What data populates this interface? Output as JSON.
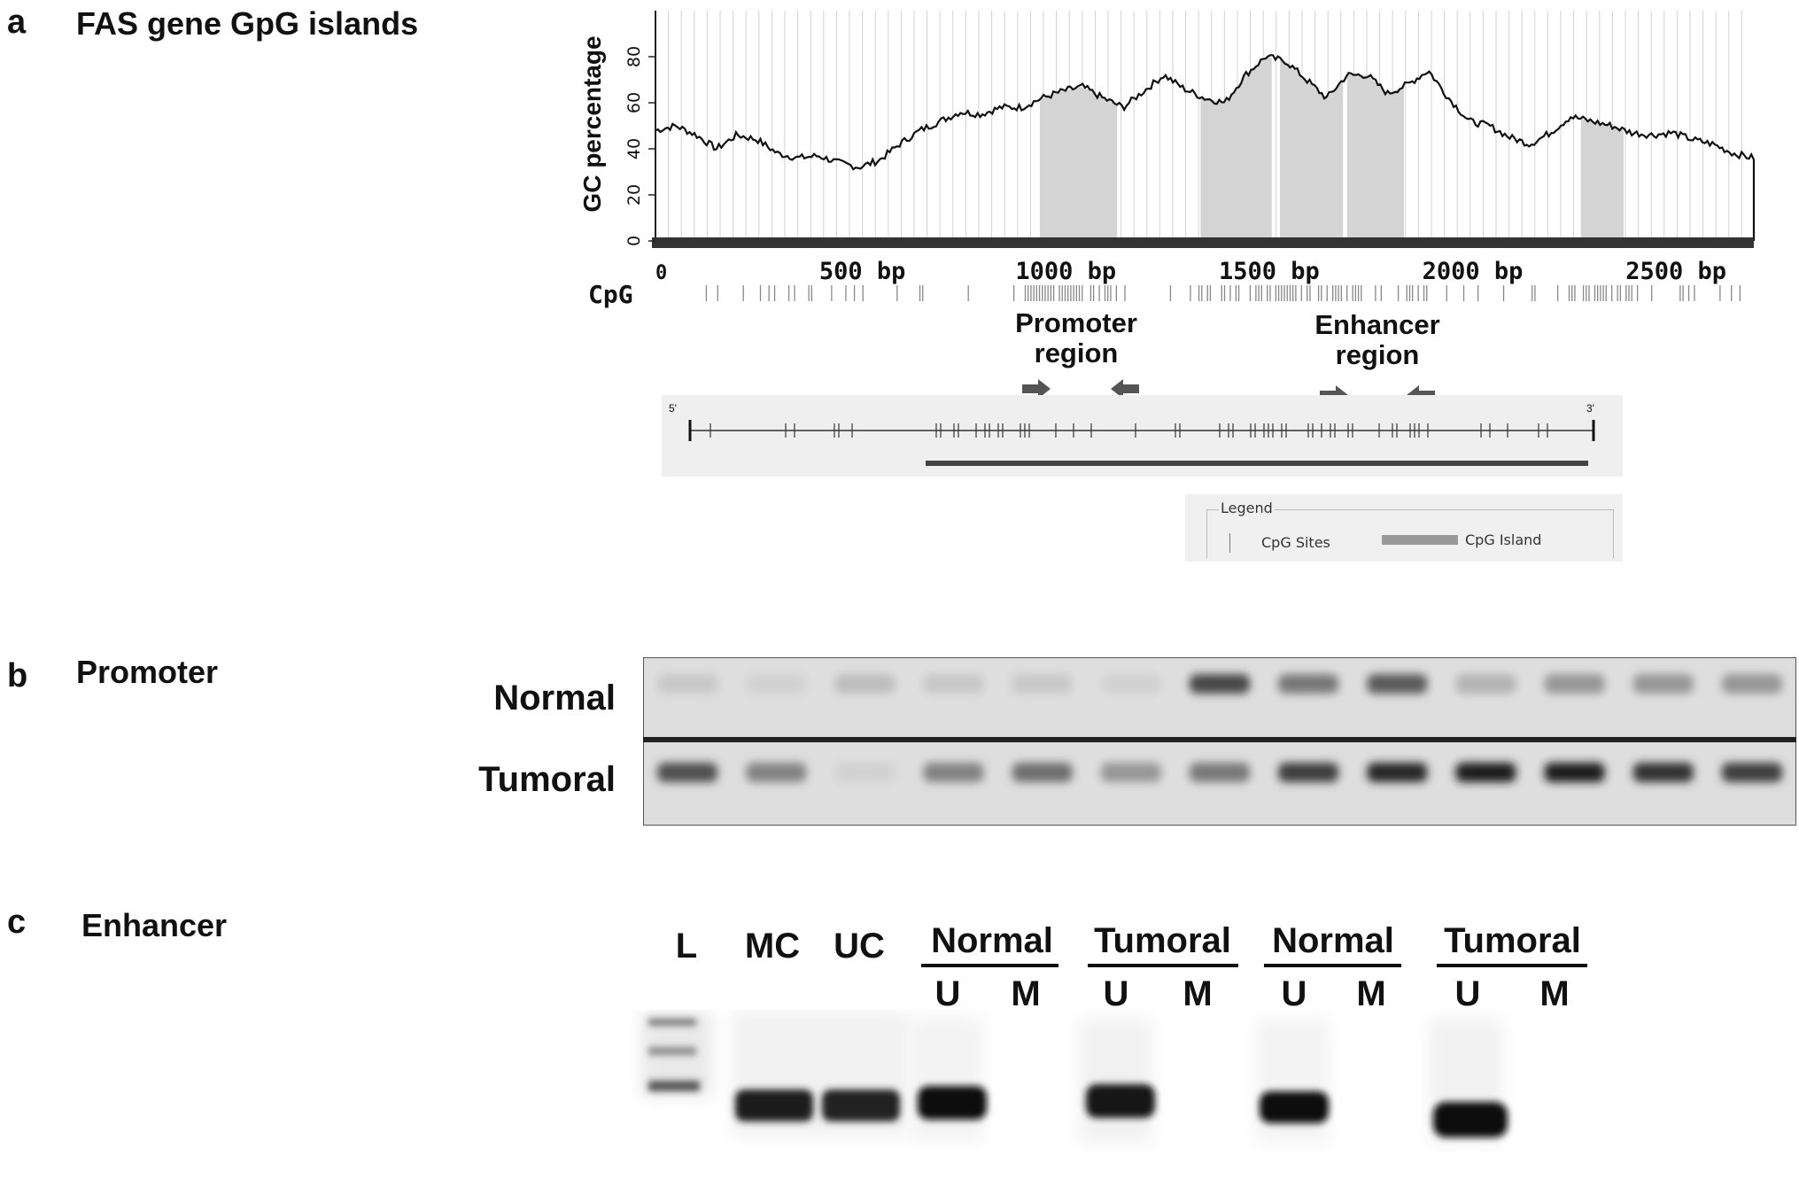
{
  "panel_a": {
    "letter": "a",
    "title": "FAS gene GpG islands",
    "chart_data": {
      "type": "line",
      "ylabel": "GC percentage",
      "ylim": [
        0,
        100
      ],
      "xlim": [
        0,
        2700
      ],
      "y_ticks": [
        "0",
        "20",
        "40",
        "60",
        "80"
      ],
      "x_ticks": [
        "0",
        "500 bp",
        "1000 bp",
        "1500 bp",
        "2000 bp",
        "2500 bp"
      ],
      "cpg_label": "CpG",
      "series": [
        {
          "x": [
            0,
            50,
            100,
            150,
            200,
            250,
            300,
            350,
            400,
            450,
            500,
            550,
            600,
            650,
            700,
            750,
            800,
            850,
            900,
            950,
            1000,
            1050,
            1100,
            1150,
            1200,
            1250,
            1300,
            1350,
            1400,
            1450,
            1500,
            1550,
            1600,
            1650,
            1700,
            1750,
            1800,
            1850,
            1900,
            1950,
            2000,
            2050,
            2100,
            2150,
            2200,
            2250,
            2300,
            2350,
            2400,
            2450,
            2500,
            2550,
            2600,
            2650,
            2700
          ],
          "values": [
            48,
            50,
            46,
            40,
            46,
            44,
            38,
            36,
            37,
            34,
            32,
            35,
            42,
            48,
            52,
            56,
            55,
            58,
            58,
            62,
            65,
            67,
            62,
            58,
            65,
            72,
            66,
            62,
            60,
            72,
            80,
            78,
            70,
            62,
            72,
            72,
            64,
            68,
            74,
            62,
            52,
            50,
            45,
            42,
            47,
            54,
            52,
            50,
            47,
            46,
            47,
            44,
            42,
            38,
            36
          ]
        }
      ],
      "islands": [
        [
          945,
          1135
        ],
        [
          1340,
          1515
        ],
        [
          1535,
          1690
        ],
        [
          1700,
          1840
        ],
        [
          2275,
          2380
        ]
      ]
    },
    "promoter_label": "Promoter\nregion",
    "enhancer_label": "Enhancer\nregion",
    "map_5prime": "5'",
    "map_3prime": "3'",
    "legend": {
      "title": "Legend",
      "cpg_sites": "CpG Sites",
      "cpg_island": "CpG Island"
    }
  },
  "panel_b": {
    "letter": "b",
    "title": "Promoter",
    "row_normal": "Normal",
    "row_tumoral": "Tumoral",
    "normal_band_intensity": [
      0.1,
      0.05,
      0.15,
      0.1,
      0.1,
      0.05,
      0.75,
      0.5,
      0.65,
      0.2,
      0.35,
      0.35,
      0.35
    ],
    "tumoral_band_intensity": [
      0.7,
      0.45,
      0.05,
      0.45,
      0.55,
      0.35,
      0.5,
      0.8,
      0.9,
      0.95,
      0.95,
      0.85,
      0.8
    ]
  },
  "panel_c": {
    "letter": "c",
    "title": "Enhancer",
    "lane_labels": [
      "L",
      "MC",
      "UC"
    ],
    "groups": [
      {
        "name": "Normal",
        "u": "U",
        "m": "M"
      },
      {
        "name": "Tumoral",
        "u": "U",
        "m": "M"
      },
      {
        "name": "Normal",
        "u": "U",
        "m": "M"
      },
      {
        "name": "Tumoral",
        "u": "U",
        "m": "M"
      }
    ]
  },
  "colors": {
    "island_fill": "#d4d4d4",
    "axis": "#222222",
    "gel_bg": "#dcdcdc",
    "band_dark": "#1e1e1e"
  }
}
